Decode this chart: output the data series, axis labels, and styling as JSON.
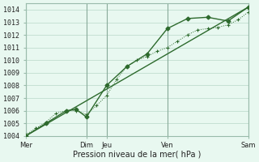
{
  "title": "",
  "xlabel": "Pression niveau de la mer( hPa )",
  "ylabel": "",
  "bg_color": "#e8f8f0",
  "grid_color": "#b8d8c8",
  "line_color": "#2d6a2d",
  "xlim": [
    0,
    5.5
  ],
  "ylim": [
    1004,
    1014.5
  ],
  "yticks": [
    1004,
    1005,
    1006,
    1007,
    1008,
    1009,
    1010,
    1011,
    1012,
    1013,
    1014
  ],
  "xtick_positions": [
    0,
    1.5,
    2.0,
    3.5,
    5.5
  ],
  "xtick_labels": [
    "Mer",
    "Dim",
    "Jeu",
    "Ven",
    "Sam"
  ],
  "vline_positions": [
    0,
    1.5,
    2.0,
    3.5,
    5.5
  ],
  "series_dotted": {
    "x": [
      0,
      0.25,
      0.5,
      0.75,
      1.0,
      1.25,
      1.5,
      1.75,
      2.0,
      2.25,
      2.5,
      2.75,
      3.0,
      3.25,
      3.5,
      3.75,
      4.0,
      4.25,
      4.5,
      4.75,
      5.0,
      5.25,
      5.5
    ],
    "y": [
      1004.1,
      1004.6,
      1005.1,
      1005.8,
      1006.0,
      1006.0,
      1005.7,
      1006.4,
      1007.2,
      1008.5,
      1009.5,
      1010.0,
      1010.3,
      1010.7,
      1011.0,
      1011.5,
      1012.0,
      1012.4,
      1012.5,
      1012.6,
      1012.8,
      1013.2,
      1013.8
    ]
  },
  "series_solid": {
    "x": [
      0,
      0.5,
      1.0,
      1.25,
      1.5,
      2.0,
      2.5,
      3.0,
      3.5,
      4.0,
      4.5,
      5.0,
      5.5
    ],
    "y": [
      1004.0,
      1005.0,
      1006.0,
      1006.1,
      1005.5,
      1008.0,
      1009.5,
      1010.5,
      1012.5,
      1013.3,
      1013.4,
      1013.1,
      1014.2
    ]
  },
  "series_trend": {
    "x": [
      0,
      5.5
    ],
    "y": [
      1004.0,
      1014.2
    ]
  }
}
